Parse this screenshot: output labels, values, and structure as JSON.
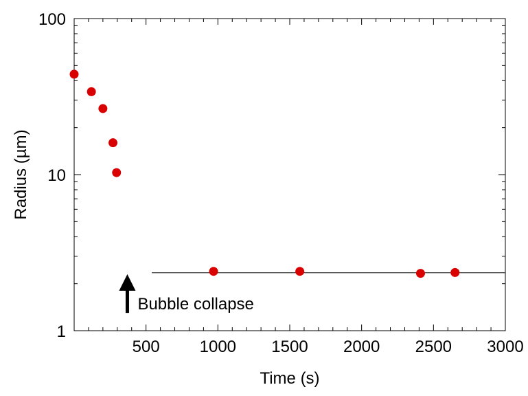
{
  "chart_data": {
    "type": "scatter",
    "xlabel": "Time (s)",
    "ylabel": "Radius (µm)",
    "xlim": [
      0,
      3000
    ],
    "ylim": [
      1,
      100
    ],
    "y_scale": "log",
    "x_ticks": [
      500,
      1000,
      1500,
      2000,
      2500,
      3000
    ],
    "x_tick_labels": [
      "500",
      "1000",
      "1500",
      "2000",
      "2500",
      "3000"
    ],
    "y_ticks": [
      1,
      10,
      100
    ],
    "y_tick_labels": [
      "1",
      "10",
      "100"
    ],
    "grid": false,
    "marker_color": "#d90000",
    "series": [
      {
        "points": [
          {
            "x": 0,
            "y": 44
          },
          {
            "x": 120,
            "y": 34
          },
          {
            "x": 200,
            "y": 26.5
          },
          {
            "x": 270,
            "y": 16
          },
          {
            "x": 295,
            "y": 10.3
          },
          {
            "x": 970,
            "y": 2.4
          },
          {
            "x": 1570,
            "y": 2.4
          },
          {
            "x": 2410,
            "y": 2.33
          },
          {
            "x": 2650,
            "y": 2.36
          }
        ]
      }
    ],
    "reference_line": {
      "x_start": 540,
      "x_end": 3000,
      "y": 2.35,
      "color": "#000000"
    },
    "annotation": {
      "text": "Bubble collapse",
      "arrow_x": 370,
      "arrow_y_from": 1.3,
      "arrow_y_to": 2.3,
      "icon": "up-arrow-icon"
    }
  }
}
